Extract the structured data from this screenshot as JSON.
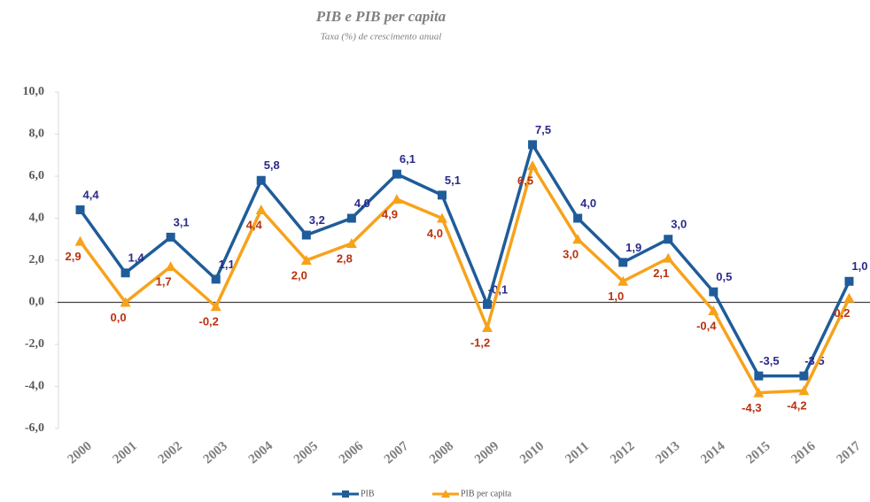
{
  "chart_data": {
    "type": "line",
    "title": "PIB e PIB per capita",
    "subtitle": "Taxa (%) de crescimento anual",
    "categories": [
      "2000",
      "2001",
      "2002",
      "2003",
      "2004",
      "2005",
      "2006",
      "2007",
      "2008",
      "2009",
      "2010",
      "2011",
      "2012",
      "2013",
      "2014",
      "2015",
      "2016",
      "2017"
    ],
    "series": [
      {
        "name": "PIB",
        "color": "#1f5c99",
        "label_color": "#2a2a8a",
        "marker": "square",
        "values": [
          4.4,
          1.4,
          3.1,
          1.1,
          5.8,
          3.2,
          4.0,
          6.1,
          5.1,
          -0.1,
          7.5,
          4.0,
          1.9,
          3.0,
          0.5,
          -3.5,
          -3.5,
          1.0
        ],
        "value_labels": [
          "4,4",
          "1,4",
          "3,1",
          "1,1",
          "5,8",
          "3,2",
          "4,0",
          "6,1",
          "5,1",
          "-0,1",
          "7,5",
          "4,0",
          "1,9",
          "3,0",
          "0,5",
          "-3,5",
          "-3,5",
          "1,0"
        ]
      },
      {
        "name": "PIB per capita",
        "color": "#f7a21b",
        "label_color": "#b8320f",
        "marker": "triangle",
        "values": [
          2.9,
          0.0,
          1.7,
          -0.2,
          4.4,
          2.0,
          2.8,
          4.9,
          4.0,
          -1.2,
          6.5,
          3.0,
          1.0,
          2.1,
          -0.4,
          -4.3,
          -4.2,
          0.2
        ],
        "value_labels": [
          "2,9",
          "0,0",
          "1,7",
          "-0,2",
          "4,4",
          "2,0",
          "2,8",
          "4,9",
          "4,0",
          "-1,2",
          "6,5",
          "3,0",
          "1,0",
          "2,1",
          "-0,4",
          "-4,3",
          "-4,2",
          "0,2"
        ]
      }
    ],
    "ylim": [
      -6,
      10
    ],
    "yticks": [
      {
        "value": -6,
        "label": "-6,0"
      },
      {
        "value": -4,
        "label": "-4,0"
      },
      {
        "value": -2,
        "label": "-2,0"
      },
      {
        "value": 0,
        "label": "0,0"
      },
      {
        "value": 2,
        "label": "2,0"
      },
      {
        "value": 4,
        "label": "4,0"
      },
      {
        "value": 6,
        "label": "6,0"
      },
      {
        "value": 8,
        "label": "8,0"
      },
      {
        "value": 10,
        "label": "10,0"
      }
    ],
    "grid": false
  }
}
